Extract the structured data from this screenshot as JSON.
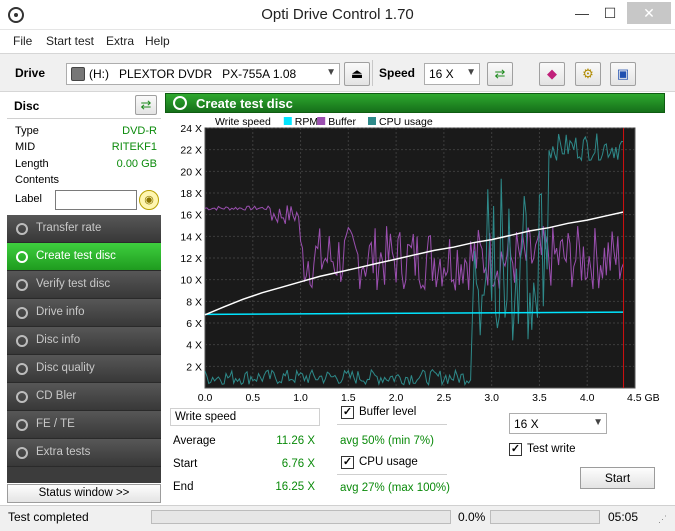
{
  "window": {
    "title": "Opti Drive Control 1.70",
    "minimize": "—",
    "maximize": "☐",
    "close": "✕"
  },
  "menu": [
    "File",
    "Start test",
    "Extra",
    "Help"
  ],
  "toolbar": {
    "drive_label": "Drive",
    "drive_value": "(H:)   PLEXTOR DVDR   PX-755A 1.08",
    "speed_label": "Speed",
    "speed_value": "16 X"
  },
  "disc": {
    "header": "Disc",
    "rows": [
      {
        "label": "Type",
        "value": "DVD-R"
      },
      {
        "label": "MID",
        "value": "RITEKF1"
      },
      {
        "label": "Length",
        "value": "0.00 GB"
      },
      {
        "label": "Contents",
        "value": ""
      }
    ],
    "label_field": "Label",
    "label_value": ""
  },
  "nav": [
    {
      "label": "Transfer rate",
      "active": false
    },
    {
      "label": "Create test disc",
      "active": true
    },
    {
      "label": "Verify test disc",
      "active": false
    },
    {
      "label": "Drive info",
      "active": false
    },
    {
      "label": "Disc info",
      "active": false
    },
    {
      "label": "Disc quality",
      "active": false
    },
    {
      "label": "CD Bler",
      "active": false
    },
    {
      "label": "FE / TE",
      "active": false
    },
    {
      "label": "Extra tests",
      "active": false
    }
  ],
  "status_window_button": "Status window >>",
  "main": {
    "title": "Create test disc"
  },
  "chart_data": {
    "type": "line",
    "legend": [
      {
        "name": "Write speed",
        "color": "#ffffff"
      },
      {
        "name": "RPM",
        "color": "#00e5ff"
      },
      {
        "name": "Buffer",
        "color": "#9b4fb0"
      },
      {
        "name": "CPU usage",
        "color": "#2e8a8a"
      }
    ],
    "y_ticks": [
      "2 X",
      "4 X",
      "6 X",
      "8 X",
      "10 X",
      "12 X",
      "14 X",
      "16 X",
      "18 X",
      "20 X",
      "22 X",
      "24 X"
    ],
    "x_ticks": [
      "0.0",
      "0.5",
      "1.0",
      "1.5",
      "2.0",
      "2.5",
      "3.0",
      "3.5",
      "4.0",
      "4.5 GB"
    ],
    "xlim": [
      0,
      4.5
    ],
    "ylim": [
      0,
      24
    ],
    "grid": true,
    "legend_position": "top",
    "write_speed": {
      "x": [
        0.0,
        0.2,
        0.4,
        0.6,
        0.8,
        1.0,
        1.2,
        1.4,
        1.6,
        1.8,
        2.0,
        2.2,
        2.4,
        2.6,
        2.8,
        3.0,
        3.2,
        3.4,
        3.6,
        3.8,
        4.0,
        4.2,
        4.38
      ],
      "y": [
        6.76,
        7.5,
        8.2,
        8.8,
        9.3,
        9.8,
        10.3,
        10.7,
        11.1,
        11.5,
        11.9,
        12.3,
        12.7,
        13.0,
        13.4,
        13.7,
        14.1,
        14.5,
        14.8,
        15.2,
        15.5,
        15.9,
        16.25
      ]
    },
    "rpm": {
      "x": [
        0.0,
        4.38
      ],
      "y": [
        6.8,
        7.0
      ]
    },
    "buffer_avg_percent": 50,
    "cpu_avg_percent": 27,
    "marker_x": 4.38
  },
  "stats": {
    "title": "Write speed",
    "average_label": "Average",
    "average": "11.26 X",
    "start_label": "Start",
    "start": "6.76 X",
    "end_label": "End",
    "end": "16.25 X",
    "buffer_label": "Buffer level",
    "buffer_value": "avg 50% (min 7%)",
    "cpu_label": "CPU usage",
    "cpu_value": "avg 27% (max 100%)",
    "speed_value": "16 X",
    "test_write_label": "Test write",
    "start_button": "Start"
  },
  "statusbar": {
    "text": "Test completed",
    "percent": "0.0%",
    "time": "05:05"
  }
}
